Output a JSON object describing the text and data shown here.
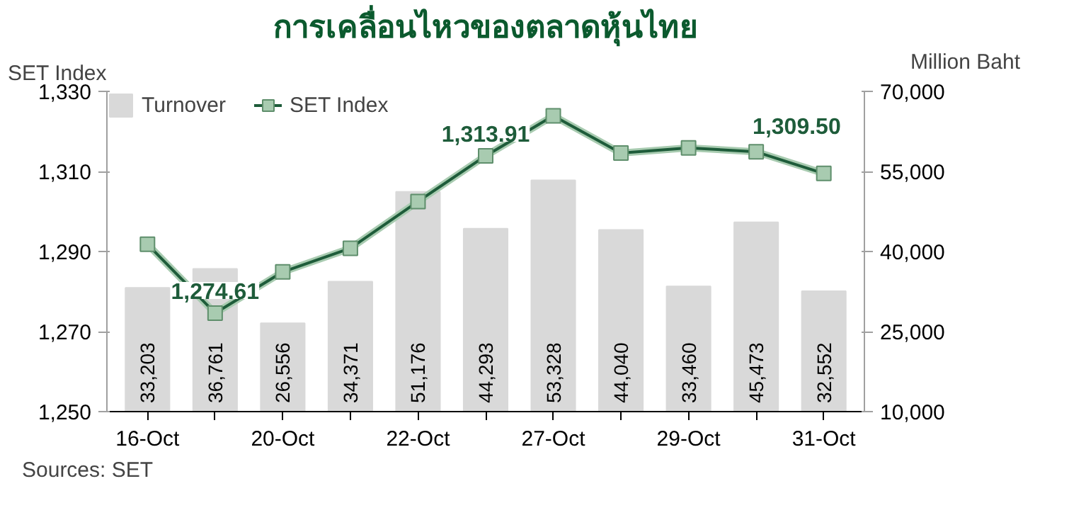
{
  "chart_data": {
    "type": "bar",
    "title": "การเคลื่อนไหวของตลาดหุ้นไทย",
    "ylabel": "SET Index",
    "y2label": "Million Baht",
    "categories": [
      "16-Oct",
      null,
      "20-Oct",
      null,
      "22-Oct",
      null,
      "27-Oct",
      null,
      "29-Oct",
      null,
      "31-Oct"
    ],
    "series": [
      {
        "name": "Turnover",
        "axis": "y2",
        "color": "#d9d9d9",
        "values": [
          33203,
          36761,
          26556,
          34371,
          51176,
          44293,
          53328,
          44040,
          33460,
          45473,
          32552
        ],
        "value_labels": [
          "33,203",
          "36,761",
          "26,556",
          "34,371",
          "51,176",
          "44,293",
          "53,328",
          "44,040",
          "33,460",
          "45,473",
          "32,552"
        ]
      },
      {
        "name": "SET Index",
        "type": "line",
        "axis": "y",
        "color": "#1e5c3a",
        "marker": "square",
        "line_style": "solid",
        "values": [
          1291.8,
          1274.61,
          1284.9,
          1290.8,
          1302.5,
          1313.91,
          1323.9,
          1314.6,
          1315.9,
          1314.9,
          1309.5
        ],
        "value_labels": [
          null,
          "1,274.61",
          null,
          null,
          null,
          "1,313.91",
          null,
          null,
          null,
          null,
          "1,309.50"
        ]
      }
    ],
    "ylim": [
      1250,
      1330
    ],
    "yticks": [
      {
        "value": 1250,
        "label": "1,250"
      },
      {
        "value": 1270,
        "label": "1,270"
      },
      {
        "value": 1290,
        "label": "1,290"
      },
      {
        "value": 1310,
        "label": "1,310"
      },
      {
        "value": 1330,
        "label": "1,330"
      }
    ],
    "y2lim": [
      10000,
      70000
    ],
    "y2ticks": [
      {
        "value": 10000,
        "label": "10,000"
      },
      {
        "value": 25000,
        "label": "25,000"
      },
      {
        "value": 40000,
        "label": "40,000"
      },
      {
        "value": 55000,
        "label": "55,000"
      },
      {
        "value": 70000,
        "label": "70,000"
      }
    ],
    "legend": "top left",
    "annotations": [
      "Sources: SET"
    ]
  }
}
